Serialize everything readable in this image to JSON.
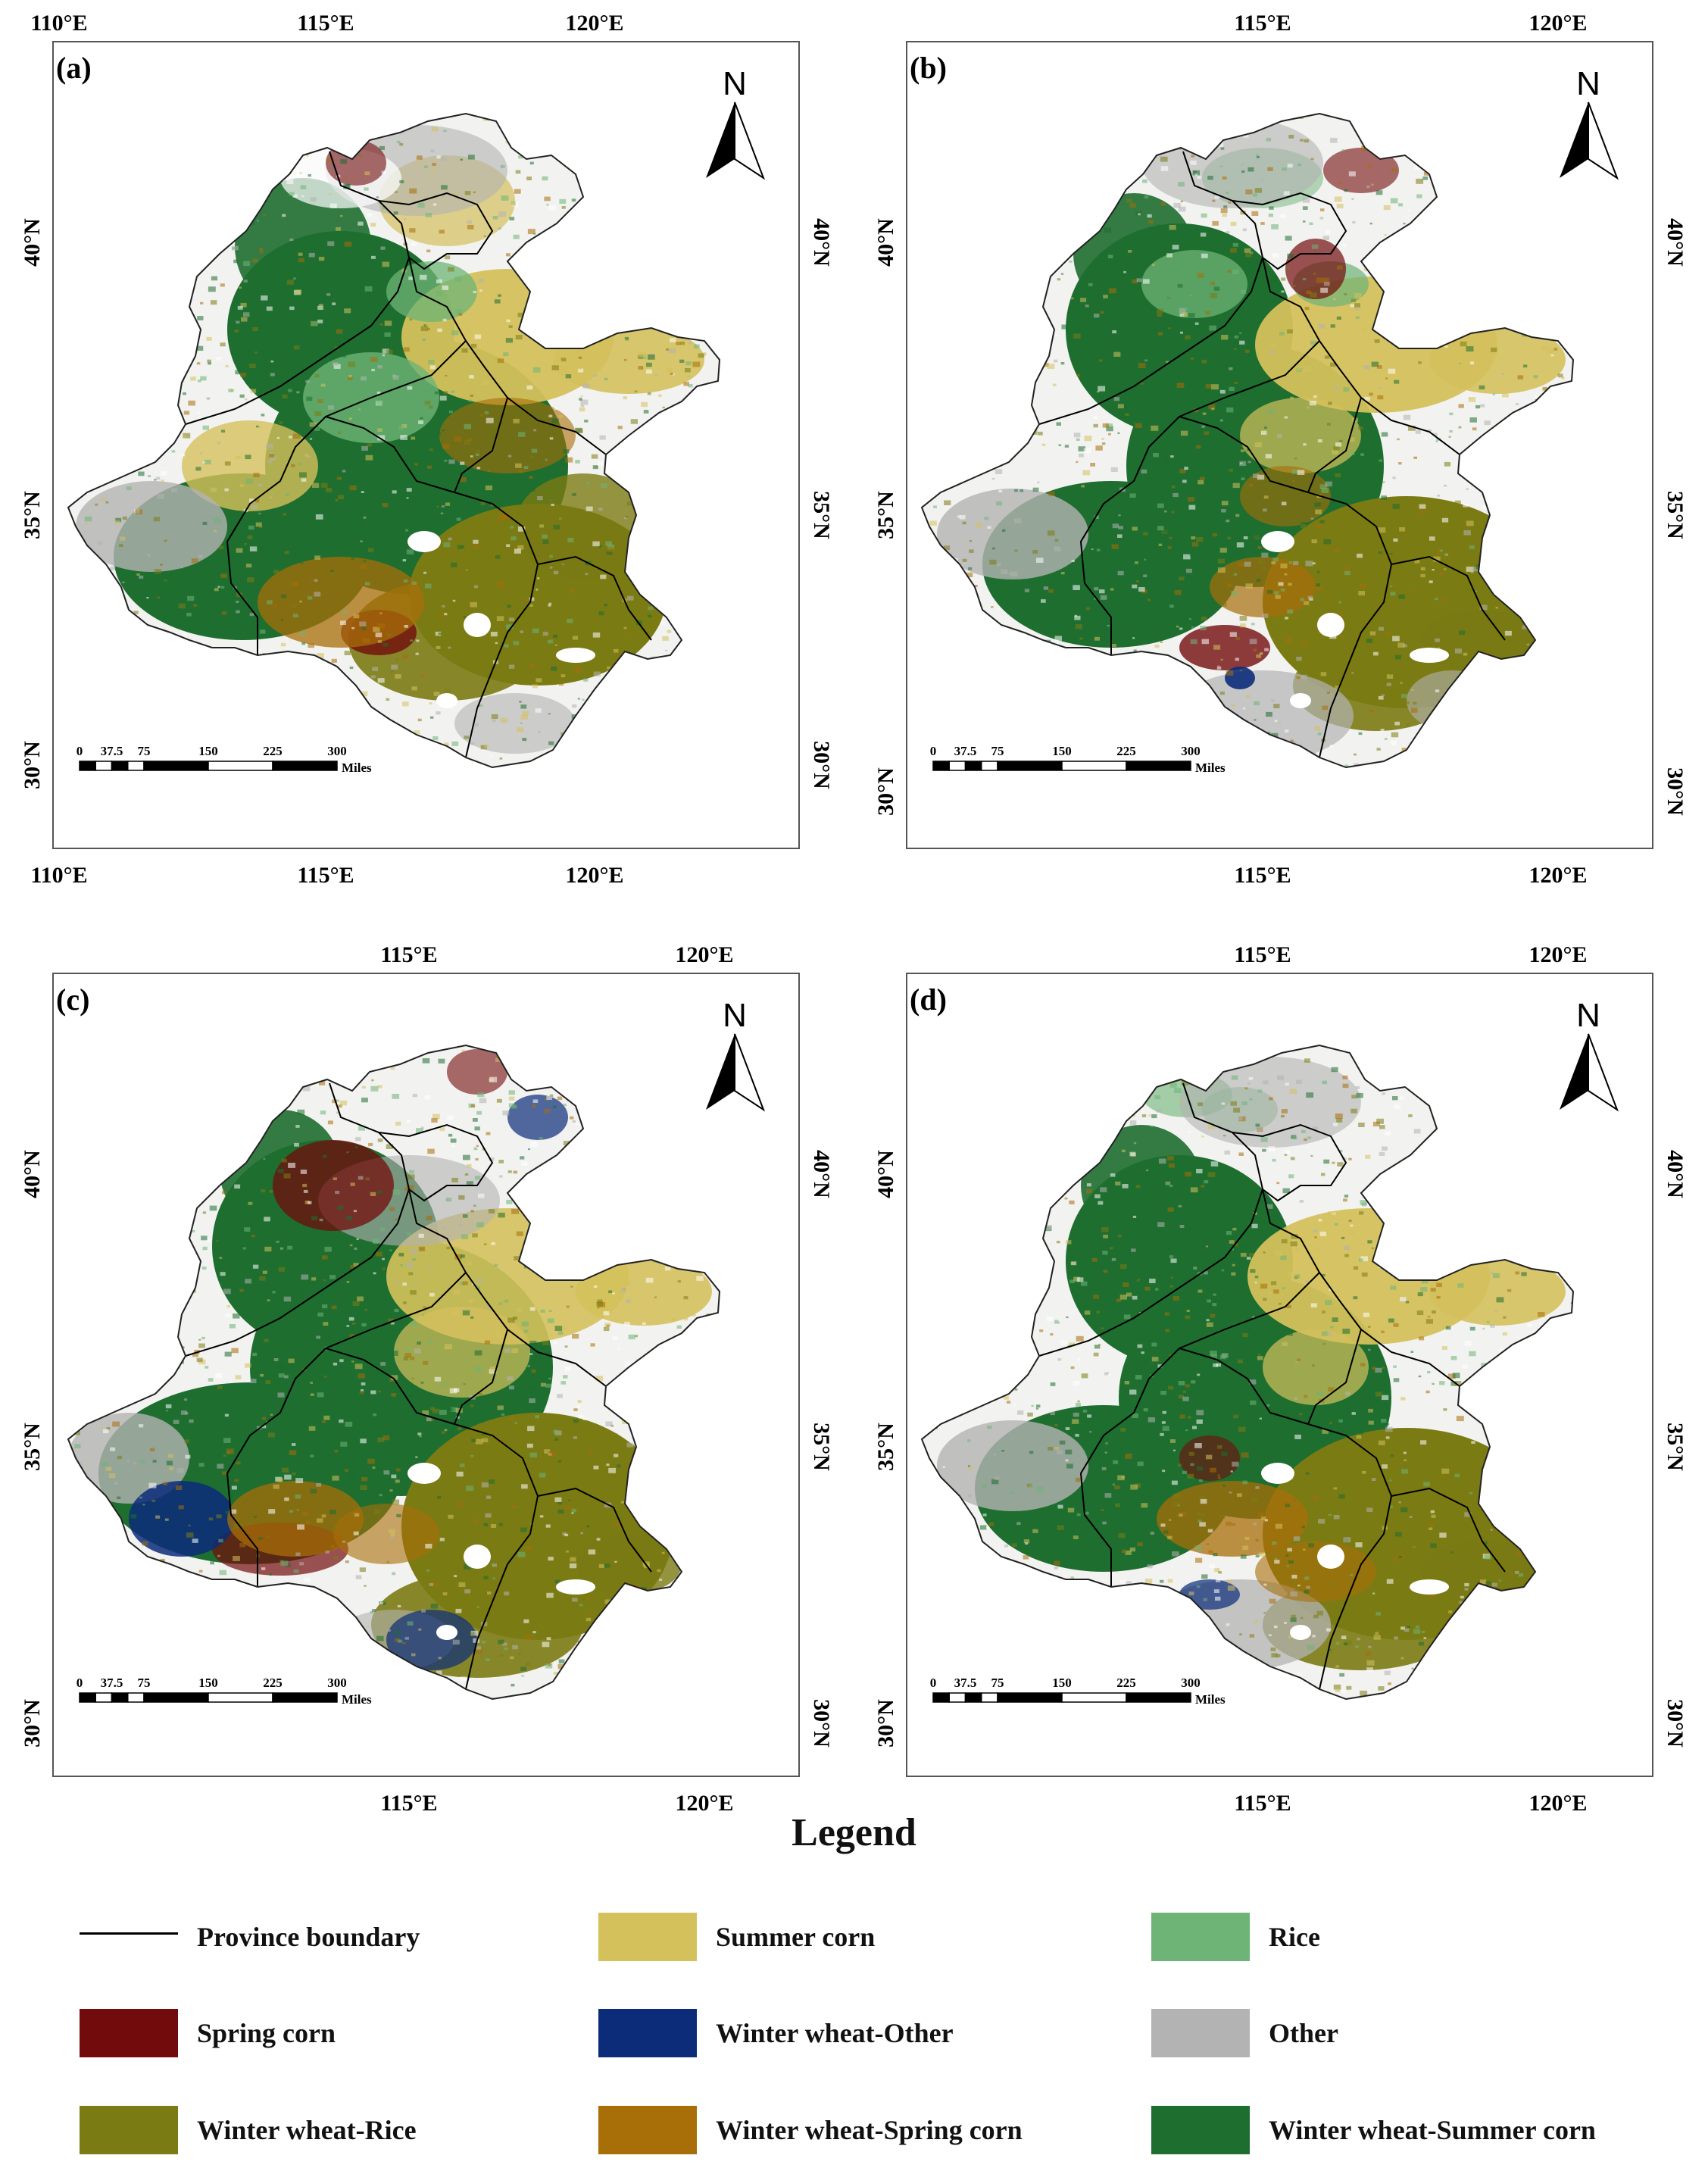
{
  "panels": [
    {
      "id": "a",
      "label": "(a)",
      "top_ticks": [
        "110°E",
        "115°E",
        "120°E"
      ],
      "bottom_ticks": [
        "110°E",
        "115°E",
        "120°E"
      ],
      "left_ticks": [
        "40°N",
        "35°N",
        "30°N"
      ],
      "right_ticks": [
        "40°N",
        "35°N",
        "30°N"
      ]
    },
    {
      "id": "b",
      "label": "(b)",
      "top_ticks": [
        "115°E",
        "120°E"
      ],
      "bottom_ticks": [
        "115°E",
        "120°E"
      ],
      "left_ticks": [
        "40°N",
        "35°N",
        "30°N"
      ],
      "right_ticks": [
        "40°N",
        "35°N",
        "30°N"
      ]
    },
    {
      "id": "c",
      "label": "(c)",
      "top_ticks": [
        "115°E",
        "120°E"
      ],
      "bottom_ticks": [
        "115°E",
        "120°E"
      ],
      "left_ticks": [
        "40°N",
        "35°N",
        "30°N"
      ],
      "right_ticks": [
        "40°N",
        "35°N",
        "30°N"
      ]
    },
    {
      "id": "d",
      "label": "(d)",
      "top_ticks": [
        "115°E",
        "120°E"
      ],
      "bottom_ticks": [
        "115°E",
        "120°E"
      ],
      "left_ticks": [
        "40°N",
        "35°N",
        "30°N"
      ],
      "right_ticks": [
        "40°N",
        "35°N",
        "30°N"
      ]
    }
  ],
  "north_arrow_label": "N",
  "scale_bar": {
    "labels": [
      "0",
      "37.5",
      "75",
      "150",
      "225",
      "300"
    ],
    "unit": "Miles"
  },
  "legend": {
    "title": "Legend",
    "items": [
      {
        "label": "Province boundary",
        "kind": "line",
        "color": "#000000"
      },
      {
        "label": "Summer corn",
        "kind": "fill",
        "color": "#d4c15c"
      },
      {
        "label": "Rice",
        "kind": "fill",
        "color": "#6db476"
      },
      {
        "label": "Spring corn",
        "kind": "fill",
        "color": "#720c0c"
      },
      {
        "label": "Winter wheat-Other",
        "kind": "fill",
        "color": "#0c2c7a"
      },
      {
        "label": "Other",
        "kind": "fill",
        "color": "#b3b3b3"
      },
      {
        "label": "Winter wheat-Rice",
        "kind": "fill",
        "color": "#7b7b14"
      },
      {
        "label": "Winter wheat-Spring corn",
        "kind": "fill",
        "color": "#a86e08"
      },
      {
        "label": "Winter wheat-Summer corn",
        "kind": "fill",
        "color": "#1e6e30"
      }
    ]
  }
}
